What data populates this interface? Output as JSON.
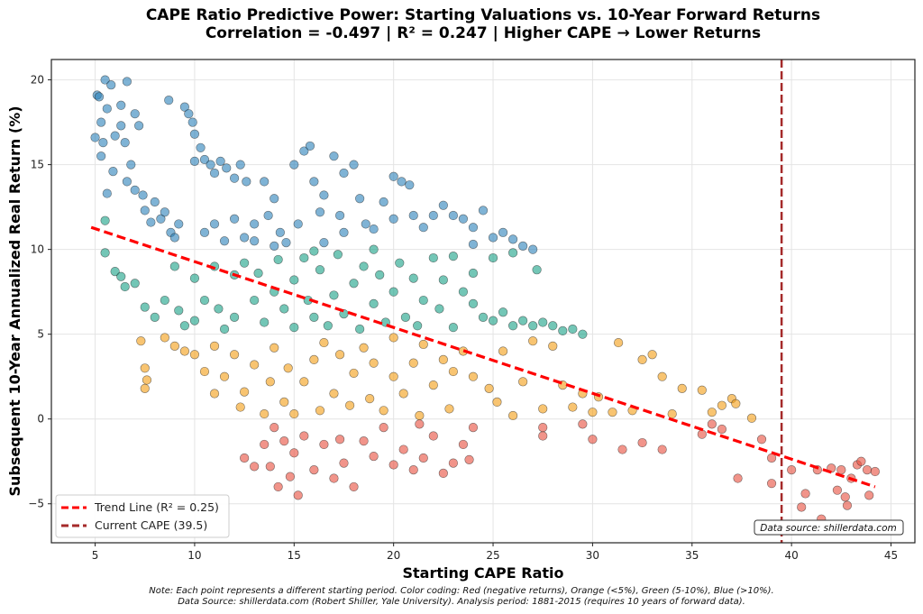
{
  "chart_data": {
    "type": "scatter",
    "title": "CAPE Ratio Predictive Power: Starting Valuations vs. 10-Year Forward Returns",
    "subtitle": "Correlation = -0.497 | R² = 0.247 | Higher CAPE → Lower Returns",
    "xlabel": "Starting CAPE Ratio",
    "ylabel": "Subsequent 10-Year Annualized Real Return (%)",
    "xlim": [
      2.8,
      46.2
    ],
    "ylim": [
      -7.3,
      21.2
    ],
    "xticks": [
      5,
      10,
      15,
      20,
      25,
      30,
      35,
      40,
      45
    ],
    "yticks": [
      20,
      15,
      10,
      5,
      0,
      -5
    ],
    "ytick_labels": [
      "20",
      "15",
      "10",
      "5",
      "0",
      "−5"
    ],
    "grid": true,
    "legend_placement": "lower-left",
    "colors": {
      "blue": "#2980b9",
      "green": "#16a085",
      "orange": "#f39c12",
      "red": "#e74c3c",
      "trend": "#ff0000",
      "current": "#a52a2a"
    },
    "trend_line": {
      "label": "Trend Line (R² = 0.25)",
      "x": [
        4.8,
        44.2
      ],
      "y": [
        11.3,
        -4.0
      ]
    },
    "current_cape": {
      "label": "Current CAPE (39.5)",
      "x": 39.5
    },
    "annotation": "Data source: shillerdata.com",
    "groups": [
      {
        "color": "blue",
        "points": [
          [
            5,
            16.6
          ],
          [
            5.1,
            19.1
          ],
          [
            5.2,
            19
          ],
          [
            5.3,
            17.5
          ],
          [
            5.3,
            15.5
          ],
          [
            5.4,
            16.3
          ],
          [
            5.5,
            20
          ],
          [
            5.6,
            18.3
          ],
          [
            5.8,
            19.7
          ],
          [
            5.9,
            14.6
          ],
          [
            5.6,
            13.3
          ],
          [
            6,
            16.7
          ],
          [
            6.3,
            17.3
          ],
          [
            6.3,
            18.5
          ],
          [
            6.6,
            19.9
          ],
          [
            6.5,
            16.3
          ],
          [
            6.8,
            15
          ],
          [
            7,
            18
          ],
          [
            7.2,
            17.3
          ],
          [
            6.6,
            14
          ],
          [
            7,
            13.5
          ],
          [
            7.4,
            13.2
          ],
          [
            7.5,
            12.3
          ],
          [
            7.8,
            11.6
          ],
          [
            8,
            12.8
          ],
          [
            8.3,
            11.8
          ],
          [
            8.5,
            12.2
          ],
          [
            8.8,
            11
          ],
          [
            9,
            10.7
          ],
          [
            9.2,
            11.5
          ],
          [
            8.7,
            18.8
          ],
          [
            9.5,
            18.4
          ],
          [
            9.7,
            18
          ],
          [
            9.9,
            17.5
          ],
          [
            10,
            16.8
          ],
          [
            10.3,
            16
          ],
          [
            10.5,
            15.3
          ],
          [
            10.8,
            15
          ],
          [
            11,
            14.5
          ],
          [
            11.3,
            15.2
          ],
          [
            11.6,
            14.8
          ],
          [
            12,
            14.2
          ],
          [
            12.3,
            15
          ],
          [
            12.6,
            14
          ],
          [
            10,
            15.2
          ],
          [
            10.5,
            11
          ],
          [
            11,
            11.5
          ],
          [
            11.5,
            10.5
          ],
          [
            12,
            11.8
          ],
          [
            12.5,
            10.7
          ],
          [
            13,
            11.5
          ],
          [
            13.5,
            14
          ],
          [
            13.7,
            12
          ],
          [
            14,
            13
          ],
          [
            14.3,
            11
          ],
          [
            14.6,
            10.4
          ],
          [
            15,
            15
          ],
          [
            15.2,
            11.5
          ],
          [
            15.5,
            15.8
          ],
          [
            15.8,
            16.1
          ],
          [
            16,
            14
          ],
          [
            16.3,
            12.2
          ],
          [
            16.5,
            13.2
          ],
          [
            17,
            15.5
          ],
          [
            17.3,
            12
          ],
          [
            17.5,
            14.5
          ],
          [
            18,
            15
          ],
          [
            18.3,
            13
          ],
          [
            18.6,
            11.5
          ],
          [
            19,
            11.2
          ],
          [
            19.5,
            12.8
          ],
          [
            20,
            14.3
          ],
          [
            20.4,
            14
          ],
          [
            20.8,
            13.8
          ],
          [
            20,
            11.8
          ],
          [
            21,
            12
          ],
          [
            21.5,
            11.3
          ],
          [
            22,
            12
          ],
          [
            22.5,
            12.6
          ],
          [
            23,
            12
          ],
          [
            23.5,
            11.8
          ],
          [
            24,
            10.3
          ],
          [
            24.5,
            12.3
          ],
          [
            24,
            11.3
          ],
          [
            25,
            10.7
          ],
          [
            25.5,
            11
          ],
          [
            26,
            10.6
          ],
          [
            26.5,
            10.2
          ],
          [
            27,
            10
          ],
          [
            13,
            10.5
          ],
          [
            14,
            10.2
          ],
          [
            16.5,
            10.4
          ],
          [
            17.5,
            11
          ]
        ]
      },
      {
        "color": "green",
        "points": [
          [
            5.5,
            11.7
          ],
          [
            5.5,
            9.8
          ],
          [
            6,
            8.7
          ],
          [
            6.3,
            8.4
          ],
          [
            6.5,
            7.8
          ],
          [
            7,
            8
          ],
          [
            7.5,
            6.6
          ],
          [
            8,
            6
          ],
          [
            8.5,
            7
          ],
          [
            9,
            9
          ],
          [
            9.2,
            6.4
          ],
          [
            9.5,
            5.5
          ],
          [
            10,
            8.3
          ],
          [
            10,
            5.8
          ],
          [
            10.5,
            7
          ],
          [
            11,
            9
          ],
          [
            11.2,
            6.5
          ],
          [
            11.5,
            5.3
          ],
          [
            12,
            8.5
          ],
          [
            12,
            6
          ],
          [
            12.5,
            9.2
          ],
          [
            13,
            7
          ],
          [
            13.2,
            8.6
          ],
          [
            13.5,
            5.7
          ],
          [
            14,
            7.5
          ],
          [
            14.2,
            9.4
          ],
          [
            14.5,
            6.5
          ],
          [
            15,
            8.2
          ],
          [
            15,
            5.4
          ],
          [
            15.5,
            9.5
          ],
          [
            15.7,
            7
          ],
          [
            16,
            6
          ],
          [
            16.3,
            8.8
          ],
          [
            16.7,
            5.5
          ],
          [
            17,
            7.3
          ],
          [
            17.2,
            9.7
          ],
          [
            17.5,
            6.2
          ],
          [
            18,
            8
          ],
          [
            18.3,
            5.3
          ],
          [
            18.5,
            9
          ],
          [
            19,
            6.8
          ],
          [
            19.3,
            8.5
          ],
          [
            19.6,
            5.7
          ],
          [
            20,
            7.5
          ],
          [
            20.3,
            9.2
          ],
          [
            20.6,
            6
          ],
          [
            21,
            8.3
          ],
          [
            21.2,
            5.5
          ],
          [
            21.5,
            7
          ],
          [
            22,
            9.5
          ],
          [
            22.3,
            6.5
          ],
          [
            22.5,
            8.2
          ],
          [
            23,
            5.4
          ],
          [
            23,
            9.6
          ],
          [
            23.5,
            7.5
          ],
          [
            24,
            8.6
          ],
          [
            24.5,
            6
          ],
          [
            25,
            9.5
          ],
          [
            25,
            5.8
          ],
          [
            25.5,
            6.3
          ],
          [
            26,
            5.5
          ],
          [
            26,
            9.8
          ],
          [
            26.5,
            5.8
          ],
          [
            27,
            5.5
          ],
          [
            27.2,
            8.8
          ],
          [
            27.5,
            5.7
          ],
          [
            28,
            5.5
          ],
          [
            28.5,
            5.2
          ],
          [
            29,
            5.3
          ],
          [
            29.5,
            5
          ],
          [
            24,
            6.8
          ],
          [
            19,
            10
          ],
          [
            16,
            9.9
          ]
        ]
      },
      {
        "color": "orange",
        "points": [
          [
            7.3,
            4.6
          ],
          [
            7.5,
            3
          ],
          [
            7.5,
            1.8
          ],
          [
            7.6,
            2.3
          ],
          [
            8.5,
            4.8
          ],
          [
            9,
            4.3
          ],
          [
            9.5,
            4
          ],
          [
            10,
            3.8
          ],
          [
            10.5,
            2.8
          ],
          [
            11,
            4.3
          ],
          [
            11,
            1.5
          ],
          [
            11.5,
            2.5
          ],
          [
            12,
            3.8
          ],
          [
            12.3,
            0.7
          ],
          [
            12.5,
            1.6
          ],
          [
            13,
            3.2
          ],
          [
            13.5,
            0.3
          ],
          [
            13.8,
            2.2
          ],
          [
            14,
            4.2
          ],
          [
            14.5,
            1
          ],
          [
            14.7,
            3
          ],
          [
            15,
            0.3
          ],
          [
            15.5,
            2.2
          ],
          [
            16,
            3.5
          ],
          [
            16.3,
            0.5
          ],
          [
            16.5,
            4.5
          ],
          [
            17,
            1.5
          ],
          [
            17.3,
            3.8
          ],
          [
            17.8,
            0.8
          ],
          [
            18,
            2.7
          ],
          [
            18.5,
            4.2
          ],
          [
            18.8,
            1.2
          ],
          [
            19,
            3.3
          ],
          [
            19.5,
            0.5
          ],
          [
            20,
            2.5
          ],
          [
            20,
            4.8
          ],
          [
            20.5,
            1.5
          ],
          [
            21,
            3.3
          ],
          [
            21.3,
            0.2
          ],
          [
            21.5,
            4.4
          ],
          [
            22,
            2
          ],
          [
            22.5,
            3.5
          ],
          [
            22.8,
            0.6
          ],
          [
            23,
            2.8
          ],
          [
            23.5,
            4
          ],
          [
            24,
            2.5
          ],
          [
            24.8,
            1.8
          ],
          [
            25.2,
            1
          ],
          [
            25.5,
            4
          ],
          [
            26,
            0.2
          ],
          [
            26.5,
            2.2
          ],
          [
            27,
            4.6
          ],
          [
            27.5,
            0.6
          ],
          [
            28,
            4.3
          ],
          [
            28.5,
            2
          ],
          [
            29,
            0.7
          ],
          [
            29.5,
            1.5
          ],
          [
            30,
            0.4
          ],
          [
            30.3,
            1.3
          ],
          [
            31,
            0.4
          ],
          [
            31.3,
            4.5
          ],
          [
            32,
            0.5
          ],
          [
            32.5,
            3.5
          ],
          [
            33,
            3.8
          ],
          [
            33.5,
            2.5
          ],
          [
            34,
            0.3
          ],
          [
            34.5,
            1.8
          ],
          [
            35.5,
            1.7
          ],
          [
            36,
            0.4
          ],
          [
            36.5,
            0.8
          ],
          [
            37,
            1.2
          ],
          [
            37.2,
            0.9
          ],
          [
            38,
            0.05
          ]
        ]
      },
      {
        "color": "red",
        "points": [
          [
            12.5,
            -2.3
          ],
          [
            13,
            -2.8
          ],
          [
            13.5,
            -1.5
          ],
          [
            13.8,
            -2.8
          ],
          [
            14,
            -0.5
          ],
          [
            14.2,
            -4
          ],
          [
            14.5,
            -1.3
          ],
          [
            14.8,
            -3.4
          ],
          [
            15,
            -2
          ],
          [
            15.2,
            -4.5
          ],
          [
            15.5,
            -1
          ],
          [
            16,
            -3
          ],
          [
            16.5,
            -1.5
          ],
          [
            17,
            -3.5
          ],
          [
            17.3,
            -1.2
          ],
          [
            17.5,
            -2.6
          ],
          [
            18,
            -4
          ],
          [
            18.5,
            -1.3
          ],
          [
            19,
            -2.2
          ],
          [
            19.5,
            -0.5
          ],
          [
            20,
            -2.7
          ],
          [
            20.5,
            -1.8
          ],
          [
            21,
            -3
          ],
          [
            21.3,
            -0.3
          ],
          [
            21.5,
            -2.3
          ],
          [
            22,
            -1
          ],
          [
            22.5,
            -3.2
          ],
          [
            23,
            -2.6
          ],
          [
            23.5,
            -1.5
          ],
          [
            23.8,
            -2.4
          ],
          [
            24,
            -0.5
          ],
          [
            27.5,
            -1
          ],
          [
            27.5,
            -0.5
          ],
          [
            29.5,
            -0.3
          ],
          [
            30,
            -1.2
          ],
          [
            31.5,
            -1.8
          ],
          [
            32.5,
            -1.4
          ],
          [
            33.5,
            -1.8
          ],
          [
            35.5,
            -0.9
          ],
          [
            36,
            -0.3
          ],
          [
            36.5,
            -0.6
          ],
          [
            37.3,
            -3.5
          ],
          [
            38.5,
            -1.2
          ],
          [
            39,
            -2.3
          ],
          [
            39,
            -3.8
          ],
          [
            40,
            -3
          ],
          [
            40.5,
            -5.2
          ],
          [
            40.7,
            -4.4
          ],
          [
            41.3,
            -3
          ],
          [
            41.5,
            -5.9
          ],
          [
            42,
            -2.9
          ],
          [
            42.3,
            -4.2
          ],
          [
            42.5,
            -3
          ],
          [
            42.7,
            -4.6
          ],
          [
            42.8,
            -5.1
          ],
          [
            43,
            -3.5
          ],
          [
            43.3,
            -2.7
          ],
          [
            43.5,
            -2.5
          ],
          [
            43.8,
            -3
          ],
          [
            43.9,
            -4.5
          ],
          [
            44.2,
            -3.1
          ]
        ]
      }
    ]
  },
  "notes": [
    "Note: Each point represents a different starting period. Color coding: Red (negative returns), Orange (<5%), Green (5-10%), Blue (>10%).",
    "Data Source: shillerdata.com (Robert Shiller, Yale University). Analysis period: 1881-2015 (requires 10 years of forward data)."
  ]
}
